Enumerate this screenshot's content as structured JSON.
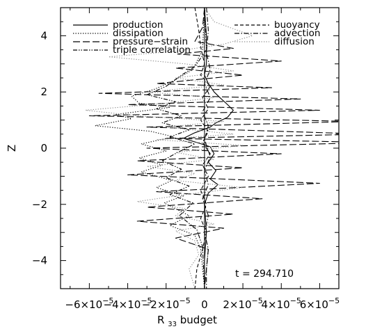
{
  "chart_data": {
    "type": "line",
    "title": "",
    "xlabel": "R",
    "xlabel_sub": "33",
    "xlabel_suffix": " budget",
    "ylabel": "Z",
    "xlim": [
      -7.5e-05,
      7e-05
    ],
    "ylim": [
      -5,
      5
    ],
    "x_ticks": [
      {
        "value": -6e-05,
        "mant": "−6×10",
        "exp": "−5"
      },
      {
        "value": -4e-05,
        "mant": "−4×10",
        "exp": "−5"
      },
      {
        "value": -2e-05,
        "mant": "−2×10",
        "exp": "−5"
      },
      {
        "value": 0,
        "mant": "0",
        "exp": ""
      },
      {
        "value": 2e-05,
        "mant": "2×10",
        "exp": "−5"
      },
      {
        "value": 4e-05,
        "mant": "4×10",
        "exp": "−5"
      },
      {
        "value": 6e-05,
        "mant": "6×10",
        "exp": "−5"
      }
    ],
    "y_ticks": [
      {
        "value": -4,
        "label": "−4"
      },
      {
        "value": -2,
        "label": "−2"
      },
      {
        "value": 0,
        "label": "0"
      },
      {
        "value": 2,
        "label": "2"
      },
      {
        "value": 4,
        "label": "4"
      }
    ],
    "grid": false,
    "legend_position": "top",
    "annotation": "t = 294.710",
    "series": [
      {
        "name": "production",
        "dash": "solid",
        "color": "#000000",
        "points": [
          [
            0.0,
            5.0
          ],
          [
            1e-06,
            4.0
          ],
          [
            1e-06,
            3.0
          ],
          [
            0.0,
            2.6
          ],
          [
            2e-06,
            2.3
          ],
          [
            5e-06,
            2.0
          ],
          [
            8e-06,
            1.8
          ],
          [
            1.2e-05,
            1.55
          ],
          [
            1.5e-05,
            1.35
          ],
          [
            1.2e-05,
            1.1
          ],
          [
            6e-06,
            0.9
          ],
          [
            3e-06,
            0.75
          ],
          [
            -5e-06,
            0.55
          ],
          [
            -1.1e-05,
            0.35
          ],
          [
            -4e-06,
            0.2
          ],
          [
            3e-06,
            0.05
          ],
          [
            5e-06,
            -0.2
          ],
          [
            2e-06,
            -0.5
          ],
          [
            6e-06,
            -0.8
          ],
          [
            3e-06,
            -1.1
          ],
          [
            7e-06,
            -1.3
          ],
          [
            2e-06,
            -1.6
          ],
          [
            0.0,
            -2.0
          ],
          [
            1e-06,
            -3.0
          ],
          [
            0.0,
            -4.0
          ],
          [
            0.0,
            -5.0
          ]
        ]
      },
      {
        "name": "dissipation",
        "dash": "dotted",
        "color": "#000000",
        "points": [
          [
            0.0,
            5.0
          ],
          [
            -1e-06,
            3.5
          ],
          [
            -6e-06,
            2.8
          ],
          [
            -1.6e-05,
            2.4
          ],
          [
            -2.6e-05,
            2.1
          ],
          [
            -3.8e-05,
            1.85
          ],
          [
            -3.4e-05,
            1.6
          ],
          [
            -1.8e-05,
            1.45
          ],
          [
            -4.6e-05,
            1.2
          ],
          [
            -3.8e-05,
            1.05
          ],
          [
            -5.7e-05,
            0.8
          ],
          [
            -2.8e-05,
            0.6
          ],
          [
            -1.6e-05,
            0.4
          ],
          [
            -3.3e-05,
            0.15
          ],
          [
            -2e-05,
            -0.1
          ],
          [
            -3.4e-05,
            -0.35
          ],
          [
            -2.2e-05,
            -0.6
          ],
          [
            -3.3e-05,
            -0.85
          ],
          [
            -1.7e-05,
            -1.15
          ],
          [
            -2.5e-05,
            -1.4
          ],
          [
            -1.1e-05,
            -1.7
          ],
          [
            -2.1e-05,
            -1.95
          ],
          [
            -8e-06,
            -2.4
          ],
          [
            -1.8e-05,
            -2.75
          ],
          [
            -5e-06,
            -3.1
          ],
          [
            -2e-06,
            -3.6
          ],
          [
            0.0,
            -5.0
          ]
        ]
      },
      {
        "name": "pressure−strain",
        "dash": "longdash",
        "color": "#000000",
        "points": [
          [
            0.0,
            5.0
          ],
          [
            -1e-06,
            4.3
          ],
          [
            -5e-06,
            3.8
          ],
          [
            1.5e-05,
            3.55
          ],
          [
            -1.4e-05,
            3.35
          ],
          [
            4e-05,
            3.1
          ],
          [
            -1.5e-05,
            2.85
          ],
          [
            2e-05,
            2.6
          ],
          [
            -2.5e-05,
            2.3
          ],
          [
            3.5e-05,
            2.15
          ],
          [
            -5.5e-05,
            1.95
          ],
          [
            5e-05,
            1.75
          ],
          [
            -4e-05,
            1.55
          ],
          [
            6e-05,
            1.35
          ],
          [
            -6e-05,
            1.15
          ],
          [
            7.8e-05,
            0.95
          ],
          [
            -3e-05,
            0.75
          ],
          [
            8.5e-05,
            0.5
          ],
          [
            -2e-05,
            0.35
          ],
          [
            9e-05,
            0.2
          ],
          [
            -3e-05,
            0.0
          ],
          [
            4e-05,
            -0.2
          ],
          [
            -3.5e-05,
            -0.45
          ],
          [
            2e-05,
            -0.7
          ],
          [
            -4e-05,
            -0.95
          ],
          [
            6e-05,
            -1.25
          ],
          [
            -2.5e-05,
            -1.55
          ],
          [
            3e-05,
            -1.8
          ],
          [
            -3e-05,
            -2.1
          ],
          [
            1.5e-05,
            -2.35
          ],
          [
            -3.5e-05,
            -2.6
          ],
          [
            1e-05,
            -2.85
          ],
          [
            -1.5e-05,
            -3.2
          ],
          [
            2e-06,
            -3.6
          ],
          [
            0.0,
            -5.0
          ]
        ]
      },
      {
        "name": "triple correlation",
        "dash": "dashdotdot",
        "color": "#000000",
        "points": [
          [
            0.0,
            5.0
          ],
          [
            1e-06,
            3.5
          ],
          [
            -5e-06,
            2.9
          ],
          [
            -1.2e-05,
            2.6
          ],
          [
            -2e-05,
            2.2
          ],
          [
            -3e-05,
            1.9
          ],
          [
            -1.5e-05,
            1.65
          ],
          [
            -2.5e-05,
            1.4
          ],
          [
            -1.2e-05,
            1.15
          ],
          [
            -2.2e-05,
            0.9
          ],
          [
            -8e-06,
            0.65
          ],
          [
            -1.8e-05,
            0.4
          ],
          [
            -5e-06,
            0.15
          ],
          [
            -1.4e-05,
            -0.15
          ],
          [
            -2.2e-05,
            -0.45
          ],
          [
            -1.2e-05,
            -0.75
          ],
          [
            -2e-05,
            -1.05
          ],
          [
            -8e-06,
            -1.35
          ],
          [
            -1.8e-05,
            -1.65
          ],
          [
            -6e-06,
            -1.95
          ],
          [
            -1.3e-05,
            -2.4
          ],
          [
            -4e-06,
            -2.9
          ],
          [
            -1e-06,
            -3.5
          ],
          [
            0.0,
            -5.0
          ]
        ]
      },
      {
        "name": "buoyancy",
        "dash": "shortdash",
        "color": "#000000",
        "points": [
          [
            -5e-06,
            5.0
          ],
          [
            -3e-06,
            4.2
          ],
          [
            -2e-06,
            3.6
          ],
          [
            0.0,
            3.0
          ],
          [
            -2e-06,
            2.6
          ],
          [
            3e-06,
            2.2
          ],
          [
            -1e-06,
            1.8
          ],
          [
            2e-06,
            1.4
          ],
          [
            -2e-06,
            1.0
          ],
          [
            2e-06,
            0.6
          ],
          [
            -1e-06,
            0.2
          ],
          [
            3e-06,
            -0.2
          ],
          [
            -1e-06,
            -0.6
          ],
          [
            2e-06,
            -1.0
          ],
          [
            -2e-06,
            -1.5
          ],
          [
            1e-06,
            -2.0
          ],
          [
            -2e-06,
            -2.5
          ],
          [
            1e-06,
            -3.0
          ],
          [
            -1e-06,
            -3.6
          ],
          [
            -4e-06,
            -4.3
          ],
          [
            -5e-06,
            -5.0
          ]
        ]
      },
      {
        "name": "advection",
        "dash": "dashdot",
        "color": "#000000",
        "points": [
          [
            1e-06,
            5.0
          ],
          [
            2e-06,
            4.2
          ],
          [
            1e-06,
            3.4
          ],
          [
            3e-06,
            2.8
          ],
          [
            0.0,
            2.3
          ],
          [
            3e-06,
            1.8
          ],
          [
            -1e-06,
            1.3
          ],
          [
            2e-06,
            0.8
          ],
          [
            0.0,
            0.3
          ],
          [
            3e-06,
            -0.3
          ],
          [
            0.0,
            -0.8
          ],
          [
            2e-06,
            -1.3
          ],
          [
            -1e-06,
            -1.8
          ],
          [
            2e-06,
            -2.4
          ],
          [
            0.0,
            -3.0
          ],
          [
            2e-06,
            -3.6
          ],
          [
            1e-06,
            -4.3
          ],
          [
            1e-06,
            -5.0
          ]
        ]
      },
      {
        "name": "diffusion",
        "dash": "dotted",
        "color": "#8c8c8c",
        "points": [
          [
            0.0,
            5.0
          ],
          [
            5e-06,
            4.5
          ],
          [
            2.5e-05,
            4.0
          ],
          [
            1e-05,
            3.7
          ],
          [
            -1.5e-05,
            3.45
          ],
          [
            -5e-05,
            3.25
          ],
          [
            -1e-05,
            3.0
          ],
          [
            1.5e-05,
            2.75
          ],
          [
            -1.5e-05,
            2.5
          ],
          [
            1e-05,
            2.25
          ],
          [
            -3e-05,
            2.0
          ],
          [
            5e-06,
            1.8
          ],
          [
            -2e-05,
            1.6
          ],
          [
            -6.2e-05,
            1.35
          ],
          [
            -3.5e-05,
            1.15
          ],
          [
            1e-05,
            0.95
          ],
          [
            -2e-05,
            0.75
          ],
          [
            1.5e-05,
            0.5
          ],
          [
            -2.5e-05,
            0.3
          ],
          [
            2e-05,
            0.1
          ],
          [
            -1.5e-05,
            -0.15
          ],
          [
            5e-06,
            -0.4
          ],
          [
            -3e-05,
            -0.65
          ],
          [
            -5e-06,
            -0.9
          ],
          [
            -1.5e-05,
            -1.15
          ],
          [
            2e-05,
            -1.4
          ],
          [
            -1e-05,
            -1.65
          ],
          [
            -3.5e-05,
            -1.9
          ],
          [
            -1e-05,
            -2.15
          ],
          [
            -1.5e-05,
            -2.4
          ],
          [
            5e-06,
            -2.7
          ],
          [
            -1.5e-05,
            -2.95
          ],
          [
            -5e-06,
            -3.3
          ],
          [
            -3e-06,
            -3.8
          ],
          [
            -8e-06,
            -4.3
          ],
          [
            -5e-06,
            -5.0
          ]
        ]
      }
    ]
  }
}
